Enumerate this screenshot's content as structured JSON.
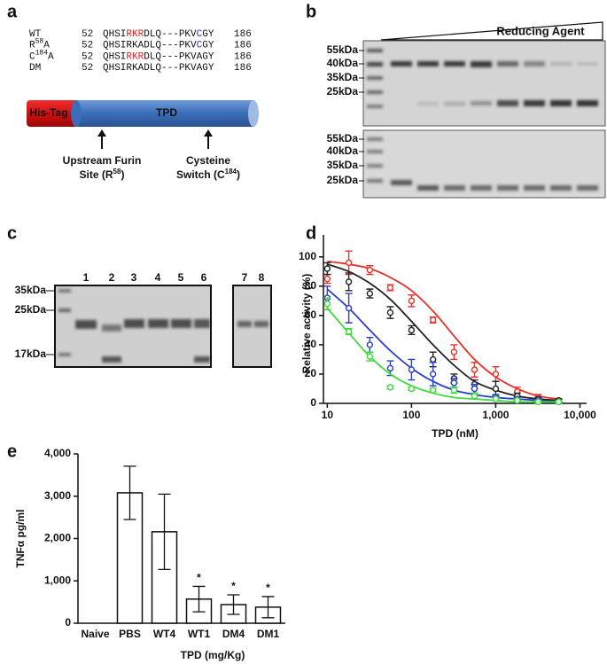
{
  "panel_a": {
    "label": "a",
    "alignment": [
      {
        "name": [
          {
            "text": "WT"
          }
        ],
        "start": "52",
        "end": "186",
        "segments": [
          {
            "text": "QHSI"
          },
          {
            "text": "RKR",
            "color": "#e02020"
          },
          {
            "text": "DLQ---PKV"
          },
          {
            "text": "C",
            "color": "#2a3fc8"
          },
          {
            "text": "GY"
          }
        ]
      },
      {
        "name": [
          {
            "text": "R"
          },
          {
            "text": "58",
            "sup": true
          },
          {
            "text": "A"
          }
        ],
        "start": "52",
        "end": "186",
        "segments": [
          {
            "text": "QHSIRKADLQ---PKV"
          },
          {
            "text": "C",
            "color": "#2a3fc8"
          },
          {
            "text": "GY"
          }
        ]
      },
      {
        "name": [
          {
            "text": "C"
          },
          {
            "text": "184",
            "sup": true
          },
          {
            "text": "A"
          }
        ],
        "start": "52",
        "end": "186",
        "segments": [
          {
            "text": "QHSI"
          },
          {
            "text": "RKR",
            "color": "#e02020"
          },
          {
            "text": "DLQ---PKVAGY"
          }
        ]
      },
      {
        "name": [
          {
            "text": "DM"
          }
        ],
        "start": "52",
        "end": "186",
        "segments": [
          {
            "text": "QHSIRKADLQ---PKVAGY"
          }
        ]
      }
    ],
    "tag": "His-Tag",
    "domain": "TPD",
    "annotations": [
      [
        [
          {
            "text": "Upstream Furin"
          }
        ],
        [
          {
            "text": "Site (R"
          },
          {
            "text": "58",
            "sup": true
          },
          {
            "text": ")"
          }
        ]
      ],
      [
        [
          {
            "text": "Cysteine"
          }
        ],
        [
          {
            "text": "Switch (C"
          },
          {
            "text": "184",
            "sup": true
          },
          {
            "text": ")"
          }
        ]
      ]
    ]
  },
  "panel_b": {
    "label": "b",
    "gradient": "Reducing Agent",
    "top_markers": [
      "55kDa",
      "40kDa",
      "35kDa",
      "25kDa"
    ],
    "bottom_markers": [
      "55kDa",
      "40kDa",
      "35kDa",
      "25kDa"
    ]
  },
  "panel_c": {
    "label": "c",
    "markers": [
      "35kDa",
      "25kDa",
      "17kDa"
    ],
    "lanes": [
      "1",
      "2",
      "3",
      "4",
      "5",
      "6",
      "7",
      "8"
    ]
  },
  "chart_data": [
    {
      "type": "scatter",
      "label": "d",
      "xlabel": "TPD (nM)",
      "ylabel": "Relative activity (%)",
      "xscale": "log",
      "xlim": [
        9,
        12000
      ],
      "ylim": [
        0,
        115
      ],
      "xticks": [
        10,
        100,
        {
          "value": 1000,
          "label": "1,000"
        },
        {
          "value": 10000,
          "label": "10,000"
        }
      ],
      "yticks": [
        0,
        20,
        40,
        60,
        80,
        100
      ],
      "x": [
        10,
        18,
        32,
        56,
        100,
        180,
        320,
        560,
        1000,
        1800,
        3200,
        5600
      ],
      "series": [
        {
          "color": "#e8312a",
          "values": [
            85,
            96,
            91,
            79,
            70,
            57,
            35,
            23,
            20,
            8,
            4,
            2
          ],
          "errors": [
            3,
            8,
            3,
            2,
            4,
            2,
            5,
            5,
            5,
            3,
            2,
            1
          ],
          "fit": [
            97,
            95,
            92,
            86,
            77,
            63,
            46,
            30,
            18,
            10,
            5,
            3
          ]
        },
        {
          "color": "#222222",
          "values": [
            92,
            83,
            75,
            62,
            50,
            30,
            17,
            13,
            10,
            5,
            3,
            2
          ],
          "errors": [
            4,
            6,
            3,
            4,
            3,
            5,
            3,
            3,
            5,
            2,
            1,
            1
          ],
          "fit": [
            95,
            90,
            82,
            71,
            56,
            40,
            26,
            15,
            9,
            5,
            3,
            2
          ]
        },
        {
          "color": "#2a3fc8",
          "values": [
            72,
            65,
            40,
            24,
            23,
            20,
            14,
            10,
            4,
            3,
            2,
            1
          ],
          "errors": [
            8,
            10,
            5,
            5,
            7,
            8,
            3,
            3,
            2,
            1,
            1,
            1
          ],
          "fit": [
            78,
            65,
            50,
            36,
            24,
            15,
            9,
            6,
            4,
            3,
            2,
            1
          ]
        },
        {
          "color": "#3ddc3d",
          "values": [
            68,
            49,
            32,
            11,
            10,
            9,
            9,
            5,
            3,
            2,
            1,
            1
          ],
          "errors": [
            4,
            2,
            3,
            1,
            1,
            1,
            2,
            2,
            1,
            1,
            1,
            1
          ],
          "fit": [
            65,
            48,
            32,
            20,
            12,
            7,
            4,
            3,
            2,
            1,
            1,
            1
          ]
        }
      ]
    },
    {
      "type": "bar",
      "label": "e",
      "xlabel": "TPD (mg/Kg)",
      "ylabel": "TNFα pg/ml",
      "ylim": [
        0,
        4000
      ],
      "yticks": [
        0,
        {
          "value": 1000,
          "label": "1,000"
        },
        {
          "value": 2000,
          "label": "2,000"
        },
        {
          "value": 3000,
          "label": "3,000"
        },
        {
          "value": 4000,
          "label": "4,000"
        }
      ],
      "categories": [
        "Naive",
        "PBS",
        "WT4",
        "WT1",
        "DM4",
        "DM1"
      ],
      "values": [
        null,
        3080,
        2160,
        570,
        440,
        380
      ],
      "errors": [
        null,
        630,
        890,
        300,
        230,
        250
      ],
      "markers": [
        null,
        null,
        null,
        "*",
        "*",
        "*"
      ],
      "color": "#ffffff"
    }
  ]
}
